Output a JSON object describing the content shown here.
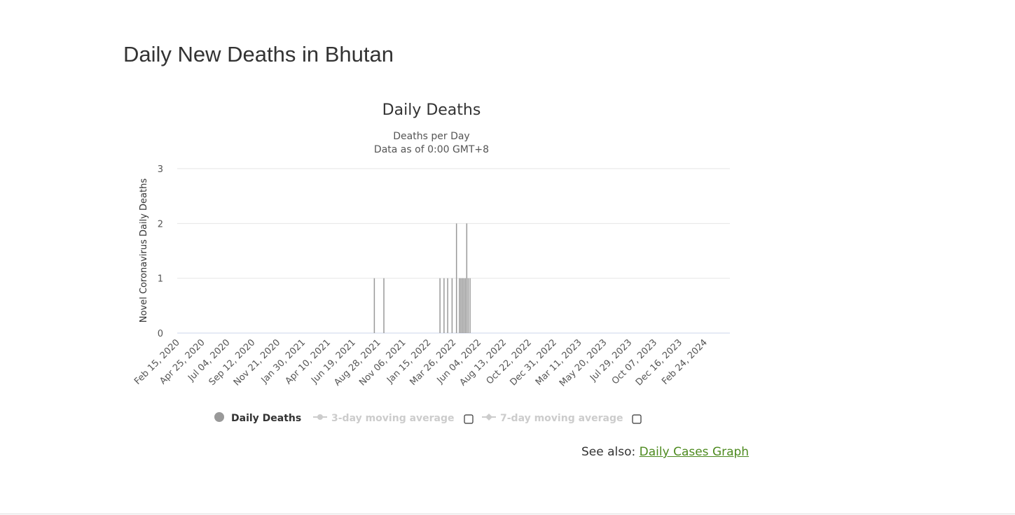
{
  "page": {
    "title": "Daily New Deaths in Bhutan",
    "see_also_prefix": "See also: ",
    "see_also_link": "Daily Cases Graph"
  },
  "chart_data": {
    "type": "bar",
    "title": "Daily Deaths",
    "subtitle_line1": "Deaths per Day",
    "subtitle_line2": "Data as of 0:00 GMT+8",
    "ylabel": "Novel Coronavirus Daily Deaths",
    "xlabel": "",
    "x_start": "2020-02-15",
    "x_end": "2024-04-01",
    "ylim": [
      0,
      3
    ],
    "yticks": [
      0,
      1,
      2,
      3
    ],
    "xtick_labels": [
      "Feb 15, 2020",
      "Apr 25, 2020",
      "Jul 04, 2020",
      "Sep 12, 2020",
      "Nov 21, 2020",
      "Jan 30, 2021",
      "Apr 10, 2021",
      "Jun 19, 2021",
      "Aug 28, 2021",
      "Nov 06, 2021",
      "Jan 15, 2022",
      "Mar 26, 2022",
      "Jun 04, 2022",
      "Aug 13, 2022",
      "Oct 22, 2022",
      "Dec 31, 2022",
      "Mar 11, 2023",
      "May 20, 2023",
      "Jul 29, 2023",
      "Oct 07, 2023",
      "Dec 16, 2023",
      "Feb 24, 2024"
    ],
    "series": [
      {
        "name": "Daily Deaths",
        "color": "#999999",
        "points": [
          {
            "x": "2021-08-05",
            "y": 1
          },
          {
            "x": "2021-08-31",
            "y": 1
          },
          {
            "x": "2022-01-31",
            "y": 1
          },
          {
            "x": "2022-02-11",
            "y": 1
          },
          {
            "x": "2022-02-21",
            "y": 1
          },
          {
            "x": "2022-03-05",
            "y": 1
          },
          {
            "x": "2022-03-17",
            "y": 2
          },
          {
            "x": "2022-03-25",
            "y": 1
          },
          {
            "x": "2022-03-29",
            "y": 1
          },
          {
            "x": "2022-04-02",
            "y": 1
          },
          {
            "x": "2022-04-06",
            "y": 1
          },
          {
            "x": "2022-04-10",
            "y": 1
          },
          {
            "x": "2022-04-14",
            "y": 2
          },
          {
            "x": "2022-04-18",
            "y": 1
          },
          {
            "x": "2022-04-23",
            "y": 1
          }
        ]
      }
    ],
    "legend": [
      {
        "label": "Daily Deaths",
        "enabled": true,
        "marker": "circle",
        "checkbox": false
      },
      {
        "label": "3-day moving average",
        "enabled": false,
        "marker": "line-circle",
        "checkbox": true
      },
      {
        "label": "7-day moving average",
        "enabled": false,
        "marker": "line-diamond",
        "checkbox": true
      }
    ],
    "colors": {
      "bar": "#999999",
      "gridline": "#e6e6e6",
      "axis": "#ccd6eb",
      "legend_disabled": "#cccccc",
      "legend_enabled": "#333333"
    }
  }
}
